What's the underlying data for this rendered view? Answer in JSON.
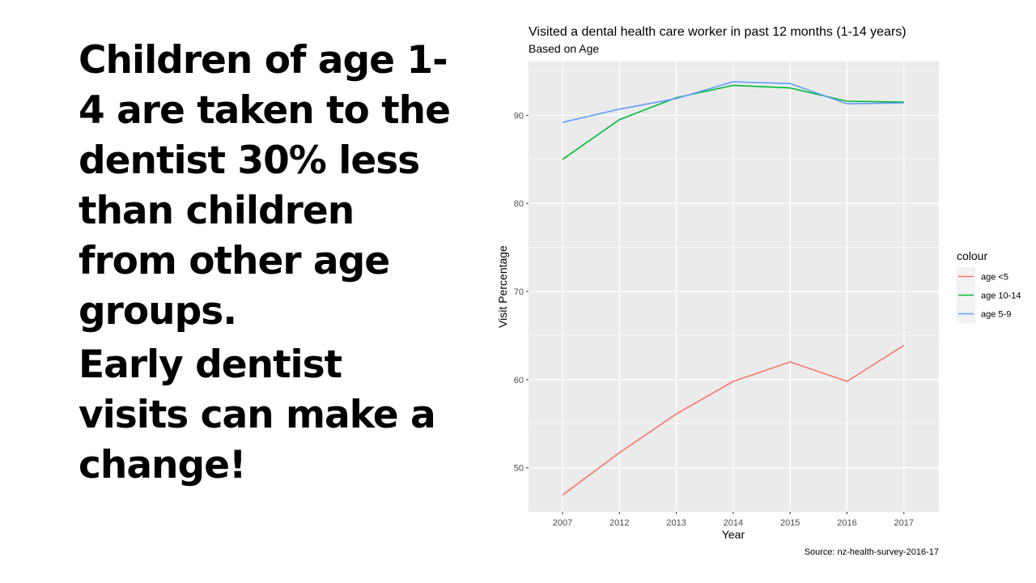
{
  "slide": {
    "paragraphs": [
      "Children of age 1-4 are taken to the dentist 30% less than children from other age groups.",
      "Early dentist visits can make a change!"
    ]
  },
  "chart_data": {
    "type": "line",
    "title": "Visited a dental health care worker in past 12 months (1-14 years)",
    "subtitle": "Based on Age",
    "xlabel": "Year",
    "ylabel": "Visit Percentage",
    "caption": "Source: nz-health-survey-2016-17",
    "categories": [
      "2007",
      "2012",
      "2013",
      "2014",
      "2015",
      "2016",
      "2017"
    ],
    "yticks": [
      50,
      60,
      70,
      80,
      90
    ],
    "ylim": [
      45.0,
      96.1
    ],
    "grid": true,
    "legend": {
      "title": "colour",
      "position": "right"
    },
    "series": [
      {
        "name": "age <5",
        "color": "#F8766D",
        "values": [
          46.9,
          51.7,
          56.1,
          59.8,
          62.0,
          59.8,
          63.9
        ]
      },
      {
        "name": "age 10-14",
        "color": "#00BA38",
        "values": [
          85.0,
          89.5,
          92.0,
          93.4,
          93.1,
          91.6,
          91.5
        ]
      },
      {
        "name": "age 5-9",
        "color": "#619CFF",
        "values": [
          89.2,
          90.7,
          91.9,
          93.8,
          93.6,
          91.3,
          91.4
        ]
      }
    ]
  }
}
